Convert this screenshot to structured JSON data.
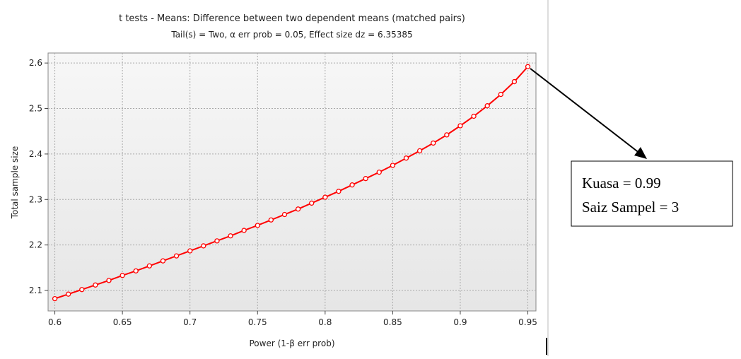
{
  "chart_data": {
    "type": "line",
    "title": "t tests - Means: Difference between two dependent means (matched pairs)",
    "subtitle": "Tail(s) = Two, α err prob = 0.05, Effect size dz = 6.35385",
    "x_label": "Power (1-β err prob)",
    "y_label": "Total sample size",
    "x": [
      0.6,
      0.61,
      0.62,
      0.63,
      0.64,
      0.65,
      0.66,
      0.67,
      0.68,
      0.69,
      0.7,
      0.71,
      0.72,
      0.73,
      0.74,
      0.75,
      0.76,
      0.77,
      0.78,
      0.79,
      0.8,
      0.81,
      0.82,
      0.83,
      0.84,
      0.85,
      0.86,
      0.87,
      0.88,
      0.89,
      0.9,
      0.91,
      0.92,
      0.93,
      0.94,
      0.95
    ],
    "series": [
      {
        "color": "#ff0000",
        "values": [
          2.082,
          2.092,
          2.102,
          2.112,
          2.122,
          2.133,
          2.143,
          2.154,
          2.165,
          2.176,
          2.187,
          2.198,
          2.209,
          2.22,
          2.232,
          2.243,
          2.255,
          2.267,
          2.279,
          2.292,
          2.305,
          2.318,
          2.332,
          2.346,
          2.36,
          2.375,
          2.391,
          2.407,
          2.424,
          2.442,
          2.462,
          2.483,
          2.506,
          2.531,
          2.559,
          2.592
        ]
      }
    ],
    "xlim": [
      0.595,
      0.956
    ],
    "ylim": [
      2.055,
      2.622
    ],
    "xticks": [
      0.6,
      0.65,
      0.7,
      0.75,
      0.8,
      0.85,
      0.9,
      0.95
    ],
    "yticks": [
      2.1,
      2.2,
      2.3,
      2.4,
      2.5,
      2.6
    ],
    "grid": true,
    "annotations": [
      "Kuasa = 0.99",
      "Saiz Sampel = 3"
    ]
  }
}
